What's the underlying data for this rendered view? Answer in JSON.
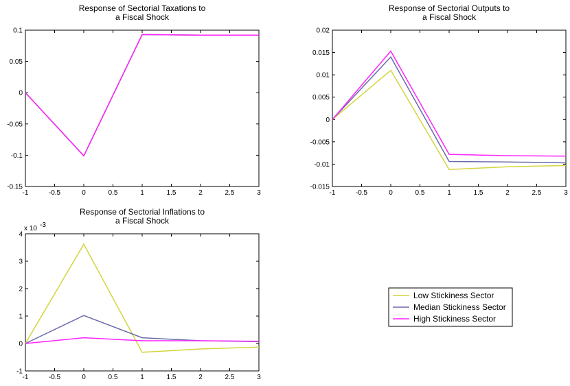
{
  "chart_data": [
    {
      "type": "line",
      "title_lines": [
        "Response of Sectorial Taxations to",
        "a Fiscal Shock"
      ],
      "x": [
        -1,
        0,
        1,
        2,
        3
      ],
      "xlim": [
        -1,
        3
      ],
      "ylim": [
        -0.15,
        0.1
      ],
      "xticks": [
        "-1",
        "-0.5",
        "0",
        "0.5",
        "1",
        "1.5",
        "2",
        "2.5",
        "3"
      ],
      "xtick_values": [
        -1,
        -0.5,
        0,
        0.5,
        1,
        1.5,
        2,
        2.5,
        3
      ],
      "yticks": [
        "-0.15",
        "-0.1",
        "-0.05",
        "0",
        "0.05",
        "0.1"
      ],
      "ytick_values": [
        -0.15,
        -0.1,
        -0.05,
        0,
        0.05,
        0.1
      ],
      "series": [
        {
          "name": "Low Stickiness Sector",
          "color": "#d4d43c",
          "values": [
            0,
            -0.101,
            0.093,
            0.092,
            0.092
          ]
        },
        {
          "name": "Median Stickiness Sector",
          "color": "#6a6aaa",
          "values": [
            0,
            -0.101,
            0.093,
            0.092,
            0.092
          ]
        },
        {
          "name": "High Stickiness Sector",
          "color": "#ff22ff",
          "values": [
            0,
            -0.101,
            0.093,
            0.092,
            0.092
          ]
        }
      ]
    },
    {
      "type": "line",
      "title_lines": [
        "Response of Sectorial Outputs to",
        "a Fiscal Shock"
      ],
      "x": [
        -1,
        0,
        1,
        2,
        3
      ],
      "xlim": [
        -1,
        3
      ],
      "ylim": [
        -0.015,
        0.02
      ],
      "xticks": [
        "-1",
        "-0.5",
        "0",
        "0.5",
        "1",
        "1.5",
        "2",
        "2.5",
        "3"
      ],
      "xtick_values": [
        -1,
        -0.5,
        0,
        0.5,
        1,
        1.5,
        2,
        2.5,
        3
      ],
      "yticks": [
        "-0.015",
        "-0.01",
        "-0.005",
        "0",
        "0.005",
        "0.01",
        "0.015",
        "0.02"
      ],
      "ytick_values": [
        -0.015,
        -0.01,
        -0.005,
        0,
        0.005,
        0.01,
        0.015,
        0.02
      ],
      "series": [
        {
          "name": "Low Stickiness Sector",
          "color": "#d4d43c",
          "values": [
            0,
            0.011,
            -0.0112,
            -0.0106,
            -0.0103
          ]
        },
        {
          "name": "Median Stickiness Sector",
          "color": "#6a6aaa",
          "values": [
            0,
            0.014,
            -0.0094,
            -0.0095,
            -0.0097
          ]
        },
        {
          "name": "High Stickiness Sector",
          "color": "#ff22ff",
          "values": [
            0,
            0.0153,
            -0.0078,
            -0.0081,
            -0.0082
          ]
        }
      ]
    },
    {
      "type": "line",
      "title_lines": [
        "Response of Sectorial Inflations to",
        "a Fiscal Shock"
      ],
      "x": [
        -1,
        0,
        1,
        2,
        3
      ],
      "xlim": [
        -1,
        3
      ],
      "ylim": [
        -1,
        4
      ],
      "y_multiplier_base": "x 10",
      "y_multiplier_exp": "-3",
      "xticks": [
        "-1",
        "-0.5",
        "0",
        "0.5",
        "1",
        "1.5",
        "2",
        "2.5",
        "3"
      ],
      "xtick_values": [
        -1,
        -0.5,
        0,
        0.5,
        1,
        1.5,
        2,
        2.5,
        3
      ],
      "yticks": [
        "-1",
        "0",
        "1",
        "2",
        "3",
        "4"
      ],
      "ytick_values": [
        -1,
        0,
        1,
        2,
        3,
        4
      ],
      "series": [
        {
          "name": "Low Stickiness Sector",
          "color": "#d4d43c",
          "values": [
            0,
            3.62,
            -0.32,
            -0.2,
            -0.13
          ]
        },
        {
          "name": "Median Stickiness Sector",
          "color": "#6a6aaa",
          "values": [
            0,
            1.02,
            0.21,
            0.1,
            0.07
          ]
        },
        {
          "name": "High Stickiness Sector",
          "color": "#ff22ff",
          "values": [
            0,
            0.21,
            0.1,
            0.1,
            0.08
          ]
        }
      ]
    }
  ],
  "legend": {
    "items": [
      {
        "label": "Low Stickiness Sector",
        "color": "#d4d43c"
      },
      {
        "label": "Median Stickiness Sector",
        "color": "#6a6aaa"
      },
      {
        "label": "High Stickiness Sector",
        "color": "#ff22ff"
      }
    ]
  }
}
